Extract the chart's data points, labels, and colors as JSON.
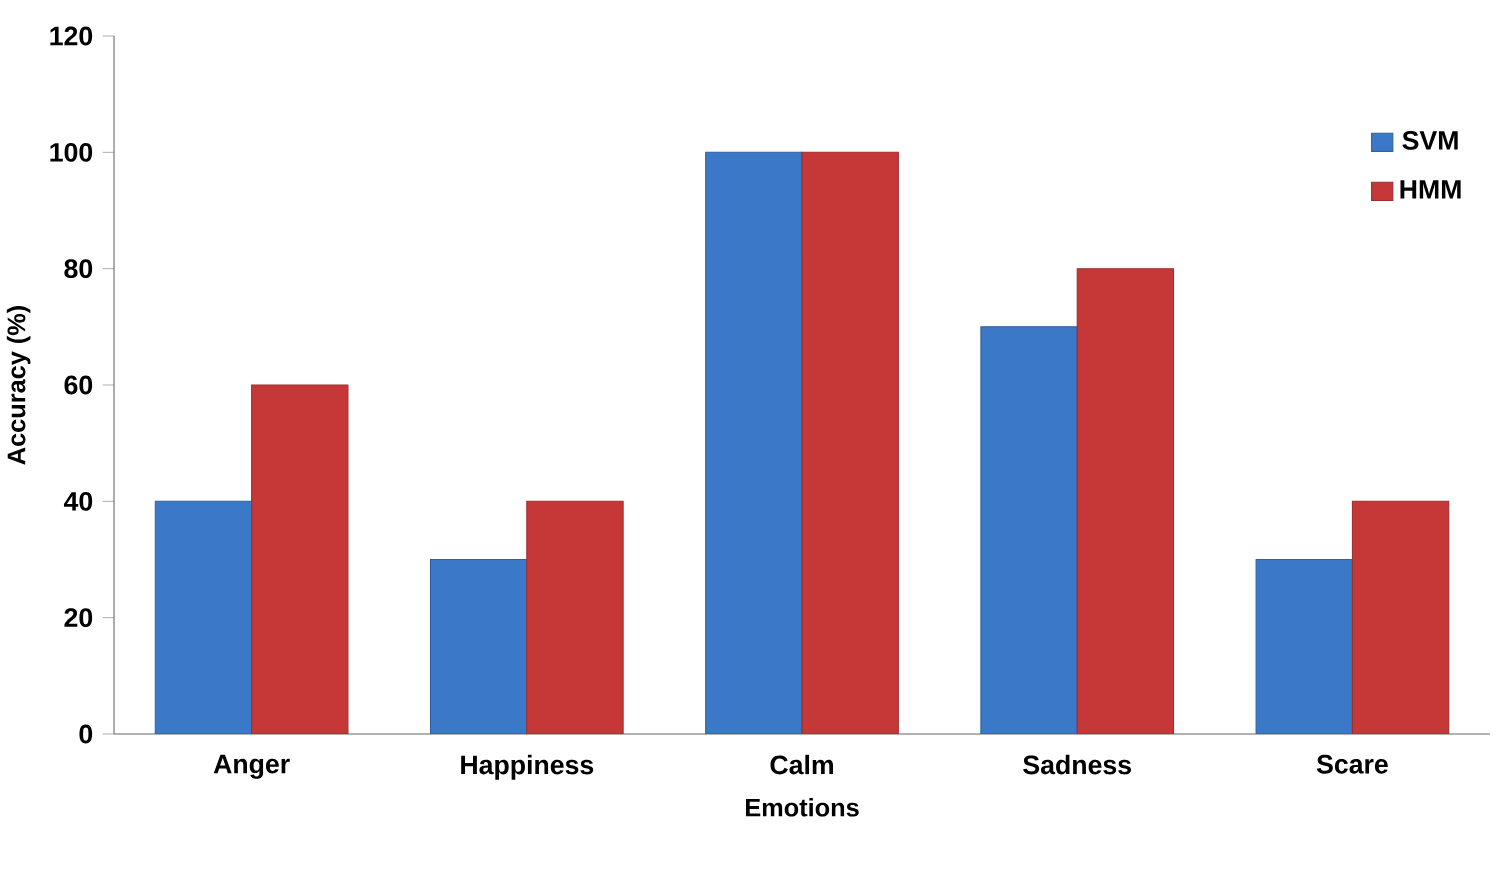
{
  "chart_data": {
    "type": "bar",
    "xlabel": "Emotions",
    "ylabel": "Accuracy  (%)",
    "categories": [
      "Anger",
      "Happiness",
      "Calm",
      "Sadness",
      "Scare"
    ],
    "series": [
      {
        "name": "SVM",
        "color": "#3b78c8",
        "values": [
          40,
          30,
          100,
          70,
          30
        ]
      },
      {
        "name": "HMM",
        "color": "#c63838",
        "values": [
          60,
          40,
          100,
          80,
          40
        ]
      }
    ],
    "ylim": [
      0,
      120
    ],
    "yticks": [
      0,
      20,
      40,
      60,
      80,
      100,
      120
    ],
    "grid": false,
    "legend": "top right"
  }
}
